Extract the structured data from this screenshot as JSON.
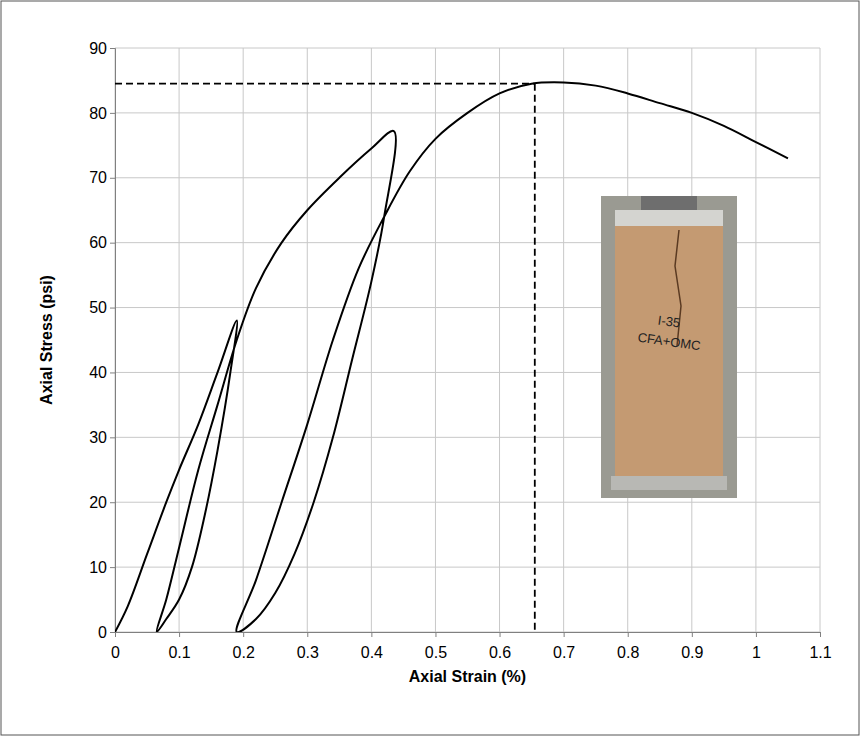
{
  "chart_data": {
    "type": "line",
    "x_label": "Axial Strain (%)",
    "y_label": "Axial Stress (psi)",
    "x": [
      0,
      0.02,
      0.05,
      0.08,
      0.1,
      0.13,
      0.16,
      0.19,
      0.18,
      0.16,
      0.14,
      0.12,
      0.1,
      0.08,
      0.065,
      0.08,
      0.1,
      0.13,
      0.16,
      0.19,
      0.22,
      0.26,
      0.3,
      0.35,
      0.4,
      0.435,
      0.42,
      0.4,
      0.37,
      0.34,
      0.31,
      0.28,
      0.25,
      0.22,
      0.19,
      0.22,
      0.26,
      0.3,
      0.34,
      0.38,
      0.42,
      0.46,
      0.5,
      0.55,
      0.6,
      0.65,
      0.7,
      0.75,
      0.8,
      0.85,
      0.9,
      0.95,
      1.0,
      1.05
    ],
    "series": [
      {
        "color": "#000000",
        "values": [
          0,
          4,
          12,
          20,
          25,
          32,
          40,
          48,
          40,
          28,
          18,
          10,
          5,
          2,
          0,
          5,
          13,
          25,
          35,
          45,
          53,
          60,
          65,
          70,
          74.5,
          77.2,
          64,
          54,
          42,
          30,
          20,
          12,
          6,
          2,
          0,
          8,
          20,
          32,
          45,
          56,
          64,
          71,
          76,
          80,
          83,
          84.5,
          84.7,
          84.2,
          83,
          81.5,
          80,
          78,
          75.5,
          73
        ]
      }
    ],
    "peak": {
      "x": 0.655,
      "y": 84.5
    },
    "annotations": [
      "I-35",
      "CFA+OMC"
    ],
    "xlim": [
      0,
      1.1
    ],
    "xticks": [
      0,
      0.1,
      0.2,
      0.3,
      0.4,
      0.5,
      0.6,
      0.7,
      0.8,
      0.9,
      1,
      1.1
    ],
    "ylim": [
      0,
      90
    ],
    "yticks": [
      0,
      10,
      20,
      30,
      40,
      50,
      60,
      70,
      80,
      90
    ],
    "grid": true
  }
}
